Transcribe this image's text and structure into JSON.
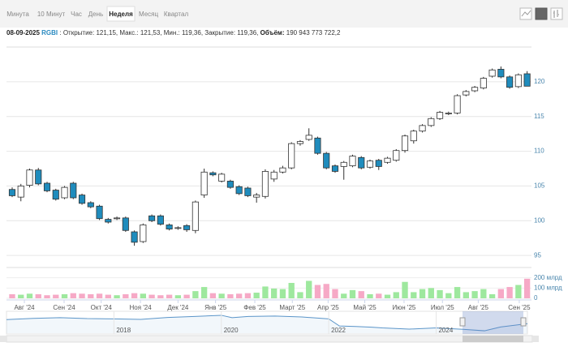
{
  "toolbar": {
    "tabs": [
      "Минута",
      "10 Минут",
      "Час",
      "День",
      "Неделя",
      "Месяц",
      "Квартал"
    ],
    "selected": 4
  },
  "info": {
    "date": "08-09-2025",
    "ticker": "RGBI",
    "text": " : Открытие: 121,15, Макс.: 121,53, Мин.: 119,36, Закрытие: 119,36, ",
    "volume_label": "Объём:",
    "volume_text": " 190 943 773 722,2"
  },
  "chart_data": {
    "type": "candlestick",
    "open": [
      104.5,
      103.4,
      105.1,
      107.3,
      105.4,
      104.4,
      103.3,
      105.4,
      103.7,
      102.6,
      102.1,
      100.2,
      100.3,
      100.4,
      98.4,
      97.0,
      100.7,
      100.7,
      99.4,
      98.9,
      99.3,
      98.6,
      103.7,
      106.9,
      105.7,
      105.7,
      104.9,
      104.7,
      103.4,
      103.5,
      106.0,
      107.0,
      107.6,
      111.1,
      111.7,
      111.9,
      109.7,
      107.9,
      107.8,
      107.9,
      109.1,
      107.7,
      108.7,
      108.4,
      108.7,
      110.1,
      111.5,
      112.9,
      113.7,
      114.7,
      115.4,
      115.5,
      118.1,
      118.7,
      119.1,
      120.8,
      121.8,
      120.7,
      119.3,
      121.15
    ],
    "high": [
      104.8,
      105.3,
      107.5,
      107.6,
      105.6,
      104.6,
      105.0,
      105.6,
      103.9,
      102.8,
      102.3,
      100.4,
      100.6,
      100.6,
      98.6,
      99.6,
      100.9,
      100.9,
      99.6,
      99.2,
      99.5,
      102.9,
      107.5,
      107.1,
      106.9,
      105.9,
      105.1,
      104.9,
      104.0,
      107.4,
      107.3,
      107.9,
      111.3,
      111.6,
      113.3,
      112.1,
      109.9,
      108.1,
      108.6,
      109.5,
      109.3,
      108.8,
      108.9,
      109.2,
      110.3,
      112.4,
      113.1,
      113.9,
      114.9,
      115.8,
      115.7,
      118.2,
      118.8,
      119.4,
      120.7,
      121.9,
      122.2,
      120.9,
      121.2,
      121.53
    ],
    "low": [
      103.4,
      102.8,
      104.8,
      105.1,
      104.1,
      102.9,
      103.1,
      103.1,
      102.3,
      101.8,
      100.1,
      99.6,
      100.1,
      98.4,
      96.4,
      96.8,
      99.8,
      99.3,
      98.6,
      98.7,
      98.4,
      98.2,
      103.3,
      106.4,
      105.5,
      104.6,
      103.7,
      103.4,
      102.6,
      103.2,
      105.6,
      106.8,
      107.4,
      110.8,
      111.5,
      109.5,
      107.4,
      106.9,
      105.9,
      107.7,
      107.4,
      107.5,
      107.3,
      108.2,
      108.5,
      109.8,
      111.1,
      112.7,
      113.5,
      114.5,
      115.2,
      115.3,
      117.9,
      118.5,
      118.9,
      120.6,
      120.5,
      119.0,
      119.1,
      119.36
    ],
    "close": [
      103.6,
      105.0,
      107.3,
      105.3,
      104.3,
      103.1,
      104.8,
      103.3,
      102.5,
      102.0,
      100.3,
      99.8,
      100.4,
      98.6,
      96.9,
      99.4,
      100.0,
      99.5,
      98.8,
      99.0,
      98.7,
      102.7,
      107.0,
      106.6,
      106.7,
      104.8,
      103.9,
      103.6,
      103.7,
      107.1,
      107.0,
      107.6,
      111.1,
      111.4,
      112.3,
      109.7,
      107.6,
      107.1,
      108.4,
      109.3,
      107.6,
      108.6,
      107.8,
      109.0,
      110.1,
      112.2,
      112.9,
      113.7,
      114.7,
      115.6,
      115.5,
      118.0,
      118.6,
      119.2,
      120.5,
      121.7,
      120.7,
      119.2,
      121.0,
      119.36
    ],
    "volume": [
      40000000000,
      35000000000,
      45000000000,
      40000000000,
      30000000000,
      35000000000,
      40000000000,
      50000000000,
      45000000000,
      40000000000,
      45000000000,
      35000000000,
      30000000000,
      40000000000,
      50000000000,
      45000000000,
      35000000000,
      30000000000,
      35000000000,
      30000000000,
      35000000000,
      70000000000,
      110000000000,
      50000000000,
      45000000000,
      40000000000,
      45000000000,
      50000000000,
      55000000000,
      115000000000,
      95000000000,
      90000000000,
      150000000000,
      60000000000,
      170000000000,
      130000000000,
      140000000000,
      90000000000,
      45000000000,
      80000000000,
      70000000000,
      40000000000,
      45000000000,
      35000000000,
      60000000000,
      160000000000,
      60000000000,
      90000000000,
      100000000000,
      80000000000,
      50000000000,
      110000000000,
      60000000000,
      70000000000,
      90000000000,
      40000000000,
      90000000000,
      110000000000,
      130000000000,
      190943773722.2
    ],
    "up_color": "#ffffff",
    "down_color": "#1f8cbd",
    "volume_up_color": "#9ee89e",
    "volume_down_color": "#f6a9c6",
    "xlim": [
      -0.65,
      59.5
    ],
    "xticks": [
      {
        "value": 1.4,
        "label": "Авг '24"
      },
      {
        "value": 5.95,
        "label": "Сен '24"
      },
      {
        "value": 10.2,
        "label": "Окт '24"
      },
      {
        "value": 14.7,
        "label": "Ноя '24"
      },
      {
        "value": 19,
        "label": "Дек '24"
      },
      {
        "value": 23.3,
        "label": "Янв '25"
      },
      {
        "value": 27.8,
        "label": "Фев '25"
      },
      {
        "value": 32.1,
        "label": "Март '25"
      },
      {
        "value": 36.2,
        "label": "Апр '25"
      },
      {
        "value": 40.4,
        "label": "Май '25"
      },
      {
        "value": 44.9,
        "label": "Июн '25"
      },
      {
        "value": 49.3,
        "label": "Июл '25"
      },
      {
        "value": 53.4,
        "label": "Авг '25"
      },
      {
        "value": 58.1,
        "label": "Сен '25"
      }
    ],
    "ylim": [
      94.2,
      125
    ],
    "yticks": [
      95,
      100,
      105,
      110,
      115,
      120
    ],
    "grid": true,
    "volume_ylim": [
      0,
      300000000000
    ],
    "volume_ticks": [
      {
        "value": 200000000000,
        "label": "200 млрд"
      },
      {
        "value": 100000000000,
        "label": "100 млрд"
      },
      0
    ],
    "navigator": {
      "x": [
        2016.0,
        2016.5,
        2017.0,
        2017.5,
        2018.0,
        2018.5,
        2019.0,
        2019.5,
        2020.0,
        2020.2,
        2020.5,
        2021.0,
        2021.5,
        2022.0,
        2022.2,
        2022.5,
        2022.8,
        2023.0,
        2023.5,
        2024.0,
        2024.5,
        2024.9,
        2025.2,
        2025.7
      ],
      "values": [
        137,
        142,
        145,
        141,
        140,
        138,
        146,
        150,
        155,
        145,
        150,
        152,
        148,
        140,
        110,
        108,
        105,
        102,
        97,
        102,
        96,
        90,
        106,
        120
      ],
      "xlim": [
        2016.0,
        2025.7
      ],
      "ylim": [
        80,
        165
      ],
      "xticks": [
        2018,
        2020,
        2022,
        2024
      ],
      "color": "#5b95c9"
    }
  }
}
